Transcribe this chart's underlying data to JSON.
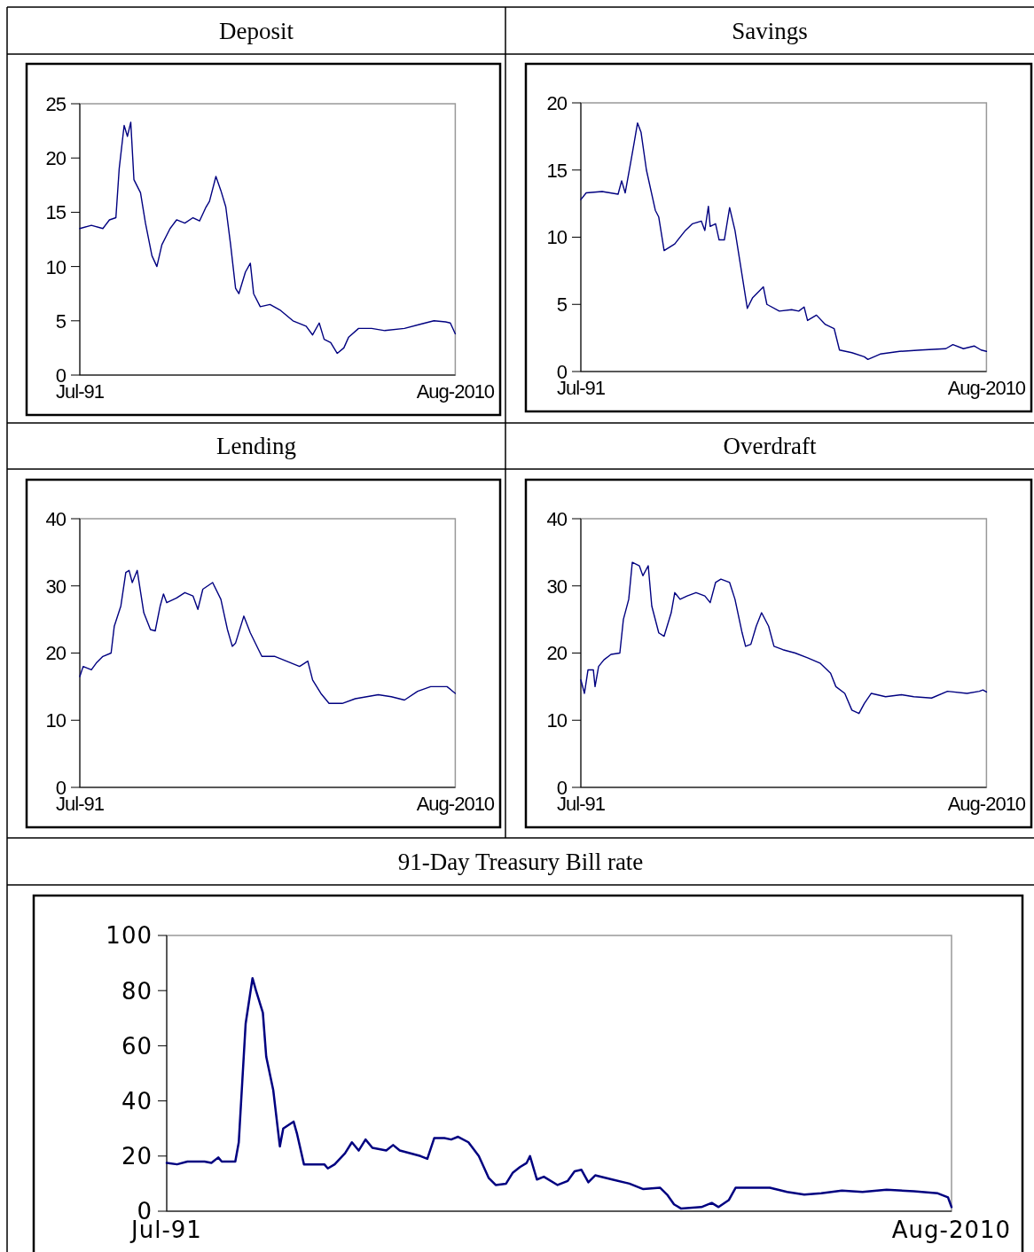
{
  "chart_data": [
    {
      "type": "line",
      "title": "Deposit",
      "xlim": [
        "1991-07",
        "2010-08"
      ],
      "xticks": [
        {
          "value": "1991-07",
          "label": "Jul-91"
        },
        {
          "value": "2010-08",
          "label": "Aug-2010"
        }
      ],
      "ylim": [
        0,
        25
      ],
      "yticks": [
        0,
        5,
        10,
        15,
        20,
        25
      ],
      "grid": false,
      "legend": false,
      "marker": "none",
      "line_style": "solid",
      "x": [
        "1991-07",
        "1992-02",
        "1992-09",
        "1993-01",
        "1993-05",
        "1993-07",
        "1993-10",
        "1993-12",
        "1994-02",
        "1994-04",
        "1994-08",
        "1994-11",
        "1995-03",
        "1995-06",
        "1995-09",
        "1996-02",
        "1996-06",
        "1996-11",
        "1997-04",
        "1997-08",
        "1997-12",
        "1998-02",
        "1998-06",
        "1998-09",
        "1998-12",
        "1999-03",
        "1999-06",
        "1999-08",
        "1999-12",
        "2000-03",
        "2000-05",
        "2000-09",
        "2001-03",
        "2001-09",
        "2002-05",
        "2003-01",
        "2003-05",
        "2003-09",
        "2003-12",
        "2004-04",
        "2004-08",
        "2004-12",
        "2005-03",
        "2005-09",
        "2006-05",
        "2007-01",
        "2008-01",
        "2008-11",
        "2009-07",
        "2010-02",
        "2010-05",
        "2010-08"
      ],
      "series": [
        {
          "color": "#000080",
          "values": [
            13.5,
            13.8,
            13.5,
            14.3,
            14.5,
            19,
            23,
            22,
            23.3,
            18,
            16.8,
            14,
            11,
            10,
            12,
            13.5,
            14.3,
            14,
            14.5,
            14.2,
            15.5,
            16,
            18.3,
            17,
            15.5,
            12,
            8,
            7.5,
            9.5,
            10.3,
            7.5,
            6.3,
            6.5,
            6,
            5,
            4.5,
            3.7,
            4.8,
            3.3,
            3,
            2,
            2.5,
            3.5,
            4.3,
            4.3,
            4.1,
            4.3,
            4.7,
            5,
            4.9,
            4.8,
            3.8
          ]
        }
      ]
    },
    {
      "type": "line",
      "title": "Savings",
      "xlim": [
        "1991-07",
        "2010-08"
      ],
      "xticks": [
        {
          "value": "1991-07",
          "label": "Jul-91"
        },
        {
          "value": "2010-08",
          "label": "Aug-2010"
        }
      ],
      "ylim": [
        0,
        20
      ],
      "yticks": [
        0,
        5,
        10,
        15,
        20
      ],
      "grid": false,
      "legend": false,
      "marker": "none",
      "line_style": "solid",
      "x": [
        "1991-07",
        "1991-10",
        "1992-07",
        "1993-04",
        "1993-06",
        "1993-08",
        "1993-11",
        "1994-01",
        "1994-03",
        "1994-05",
        "1994-08",
        "1995-01",
        "1995-03",
        "1995-06",
        "1995-12",
        "1996-06",
        "1996-10",
        "1997-03",
        "1997-05",
        "1997-07",
        "1997-08",
        "1997-11",
        "1998-01",
        "1998-04",
        "1998-07",
        "1998-10",
        "1999-01",
        "1999-05",
        "1999-08",
        "2000-02",
        "2000-04",
        "2000-11",
        "2001-06",
        "2001-10",
        "2002-01",
        "2002-03",
        "2002-08",
        "2003-01",
        "2003-06",
        "2003-09",
        "2004-04",
        "2004-11",
        "2005-01",
        "2005-08",
        "2006-07",
        "2007-07",
        "2008-09",
        "2009-01",
        "2009-07",
        "2010-01",
        "2010-05",
        "2010-08"
      ],
      "series": [
        {
          "color": "#000080",
          "values": [
            12.8,
            13.3,
            13.4,
            13.2,
            14.2,
            13.3,
            15.5,
            17,
            18.5,
            17.8,
            15,
            12,
            11.5,
            9,
            9.5,
            10.5,
            11,
            11.2,
            10.5,
            12.3,
            10.8,
            11,
            9.8,
            9.8,
            12.2,
            10.5,
            8,
            4.7,
            5.5,
            6.3,
            5,
            4.5,
            4.6,
            4.5,
            4.8,
            3.8,
            4.2,
            3.5,
            3.2,
            1.6,
            1.4,
            1.1,
            0.9,
            1.3,
            1.5,
            1.6,
            1.7,
            2,
            1.7,
            1.9,
            1.6,
            1.5
          ]
        }
      ]
    },
    {
      "type": "line",
      "title": "Lending",
      "xlim": [
        "1991-07",
        "2010-08"
      ],
      "xticks": [
        {
          "value": "1991-07",
          "label": "Jul-91"
        },
        {
          "value": "2010-08",
          "label": "Aug-2010"
        }
      ],
      "ylim": [
        0,
        40
      ],
      "yticks": [
        0,
        10,
        20,
        30,
        40
      ],
      "grid": false,
      "legend": false,
      "marker": "none",
      "line_style": "solid",
      "x": [
        "1991-07",
        "1991-09",
        "1992-02",
        "1992-05",
        "1992-09",
        "1993-02",
        "1993-04",
        "1993-08",
        "1993-11",
        "1994-01",
        "1994-03",
        "1994-06",
        "1994-10",
        "1995-02",
        "1995-05",
        "1995-08",
        "1995-10",
        "1995-12",
        "1996-06",
        "1996-11",
        "1997-04",
        "1997-07",
        "1997-10",
        "1998-04",
        "1998-09",
        "1999-01",
        "1999-04",
        "1999-06",
        "1999-11",
        "2000-03",
        "2000-08",
        "2000-10",
        "2001-06",
        "2002-02",
        "2002-09",
        "2003-02",
        "2003-05",
        "2003-10",
        "2004-03",
        "2004-11",
        "2005-07",
        "2006-09",
        "2007-05",
        "2008-01",
        "2008-09",
        "2009-05",
        "2010-03",
        "2010-08"
      ],
      "series": [
        {
          "color": "#000080",
          "values": [
            16.5,
            18,
            17.5,
            18.5,
            19.5,
            20,
            24,
            27,
            32,
            32.3,
            30.5,
            32.3,
            26,
            23.5,
            23.3,
            27,
            28.8,
            27.5,
            28.2,
            29,
            28.5,
            26.5,
            29.5,
            30.5,
            28,
            23.5,
            21,
            21.5,
            25.5,
            23,
            20.5,
            19.5,
            19.5,
            18.7,
            18,
            18.8,
            16,
            14,
            12.5,
            12.5,
            13.2,
            13.8,
            13.5,
            13,
            14.3,
            15,
            15,
            14
          ]
        }
      ]
    },
    {
      "type": "line",
      "title": "Overdraft",
      "xlim": [
        "1991-07",
        "2010-08"
      ],
      "xticks": [
        {
          "value": "1991-07",
          "label": "Jul-91"
        },
        {
          "value": "2010-08",
          "label": "Aug-2010"
        }
      ],
      "ylim": [
        0,
        40
      ],
      "yticks": [
        0,
        10,
        20,
        30,
        40
      ],
      "grid": false,
      "legend": false,
      "marker": "none",
      "line_style": "solid",
      "x": [
        "1991-07",
        "1991-09",
        "1991-11",
        "1992-02",
        "1992-03",
        "1992-05",
        "1992-08",
        "1992-12",
        "1993-05",
        "1993-07",
        "1993-10",
        "1993-12",
        "1994-04",
        "1994-06",
        "1994-09",
        "1994-11",
        "1995-03",
        "1995-06",
        "1995-10",
        "1995-12",
        "1996-03",
        "1996-07",
        "1996-12",
        "1997-05",
        "1997-08",
        "1997-11",
        "1998-02",
        "1998-07",
        "1998-10",
        "1999-02",
        "1999-04",
        "1999-07",
        "1999-10",
        "2000-01",
        "2000-05",
        "2000-08",
        "2001-01",
        "2001-08",
        "2002-03",
        "2002-10",
        "2003-04",
        "2003-07",
        "2003-12",
        "2004-04",
        "2004-08",
        "2004-11",
        "2005-03",
        "2005-11",
        "2006-08",
        "2007-03",
        "2008-01",
        "2008-10",
        "2009-09",
        "2010-04",
        "2010-06",
        "2010-08"
      ],
      "series": [
        {
          "color": "#000080",
          "values": [
            16,
            14,
            17.5,
            17.5,
            15,
            18,
            19,
            19.8,
            20,
            25,
            28,
            33.5,
            33,
            31.5,
            33,
            27,
            23,
            22.5,
            26,
            29,
            28,
            28.5,
            29,
            28.5,
            27.5,
            30.5,
            31,
            30.5,
            28,
            23,
            21,
            21.3,
            24,
            26,
            24,
            21,
            20.5,
            20,
            19.3,
            18.5,
            17,
            15,
            14,
            11.5,
            11,
            12.5,
            14,
            13.5,
            13.8,
            13.5,
            13.3,
            14.3,
            14,
            14.3,
            14.5,
            14.2
          ]
        }
      ]
    },
    {
      "type": "line",
      "title": "91-Day Treasury Bill rate",
      "xlim": [
        "1991-07",
        "2010-08"
      ],
      "xticks": [
        {
          "value": "1991-07",
          "label": "Jul-91"
        },
        {
          "value": "2010-08",
          "label": "Aug-2010"
        }
      ],
      "ylim": [
        0,
        100
      ],
      "yticks": [
        0,
        20,
        40,
        60,
        80,
        100
      ],
      "grid": false,
      "legend": false,
      "marker": "none",
      "line_style": "solid",
      "x": [
        "1991-07",
        "1991-10",
        "1992-01",
        "1992-06",
        "1992-08",
        "1992-10",
        "1992-11",
        "1993-03",
        "1993-04",
        "1993-06",
        "1993-08",
        "1993-09",
        "1993-11",
        "1993-12",
        "1994-02",
        "1994-04",
        "1994-05",
        "1994-08",
        "1994-09",
        "1994-11",
        "1995-01",
        "1995-05",
        "1995-06",
        "1995-08",
        "1995-11",
        "1996-01",
        "1996-03",
        "1996-05",
        "1996-07",
        "1996-11",
        "1997-01",
        "1997-03",
        "1997-09",
        "1997-11",
        "1998-01",
        "1998-04",
        "1998-06",
        "1998-08",
        "1998-11",
        "1999-02",
        "1999-05",
        "1999-07",
        "1999-10",
        "1999-12",
        "2000-02",
        "2000-04",
        "2000-05",
        "2000-07",
        "2000-09",
        "2001-01",
        "2001-04",
        "2001-06",
        "2001-08",
        "2001-10",
        "2001-12",
        "2002-05",
        "2002-10",
        "2003-02",
        "2003-07",
        "2003-09",
        "2003-11",
        "2004-01",
        "2004-07",
        "2004-10",
        "2004-12",
        "2005-03",
        "2005-05",
        "2005-10",
        "2006-03",
        "2006-08",
        "2007-01",
        "2007-06",
        "2007-12",
        "2008-06",
        "2009-01",
        "2009-09",
        "2010-04",
        "2010-07",
        "2010-08"
      ],
      "series": [
        {
          "color": "#000080",
          "values": [
            17.5,
            17,
            18,
            18,
            17.5,
            19.5,
            18,
            18,
            25,
            68,
            84.5,
            80,
            72,
            56,
            44,
            23.5,
            30,
            32.5,
            28,
            17,
            17,
            17,
            15.5,
            17,
            21,
            25,
            22,
            26,
            23,
            22,
            24,
            22,
            20,
            19,
            26.5,
            26.5,
            26,
            27,
            25,
            20,
            12,
            9.5,
            10,
            14,
            16,
            17.5,
            20,
            11.5,
            12.5,
            9.5,
            11,
            14.5,
            15,
            10.5,
            13,
            11.5,
            10,
            8,
            8.5,
            6,
            2.5,
            1,
            1.5,
            3,
            1.5,
            4,
            8.5,
            8.5,
            8.5,
            7,
            6,
            6.5,
            7.5,
            7,
            7.8,
            7.2,
            6.5,
            5,
            1.5
          ]
        }
      ]
    }
  ]
}
